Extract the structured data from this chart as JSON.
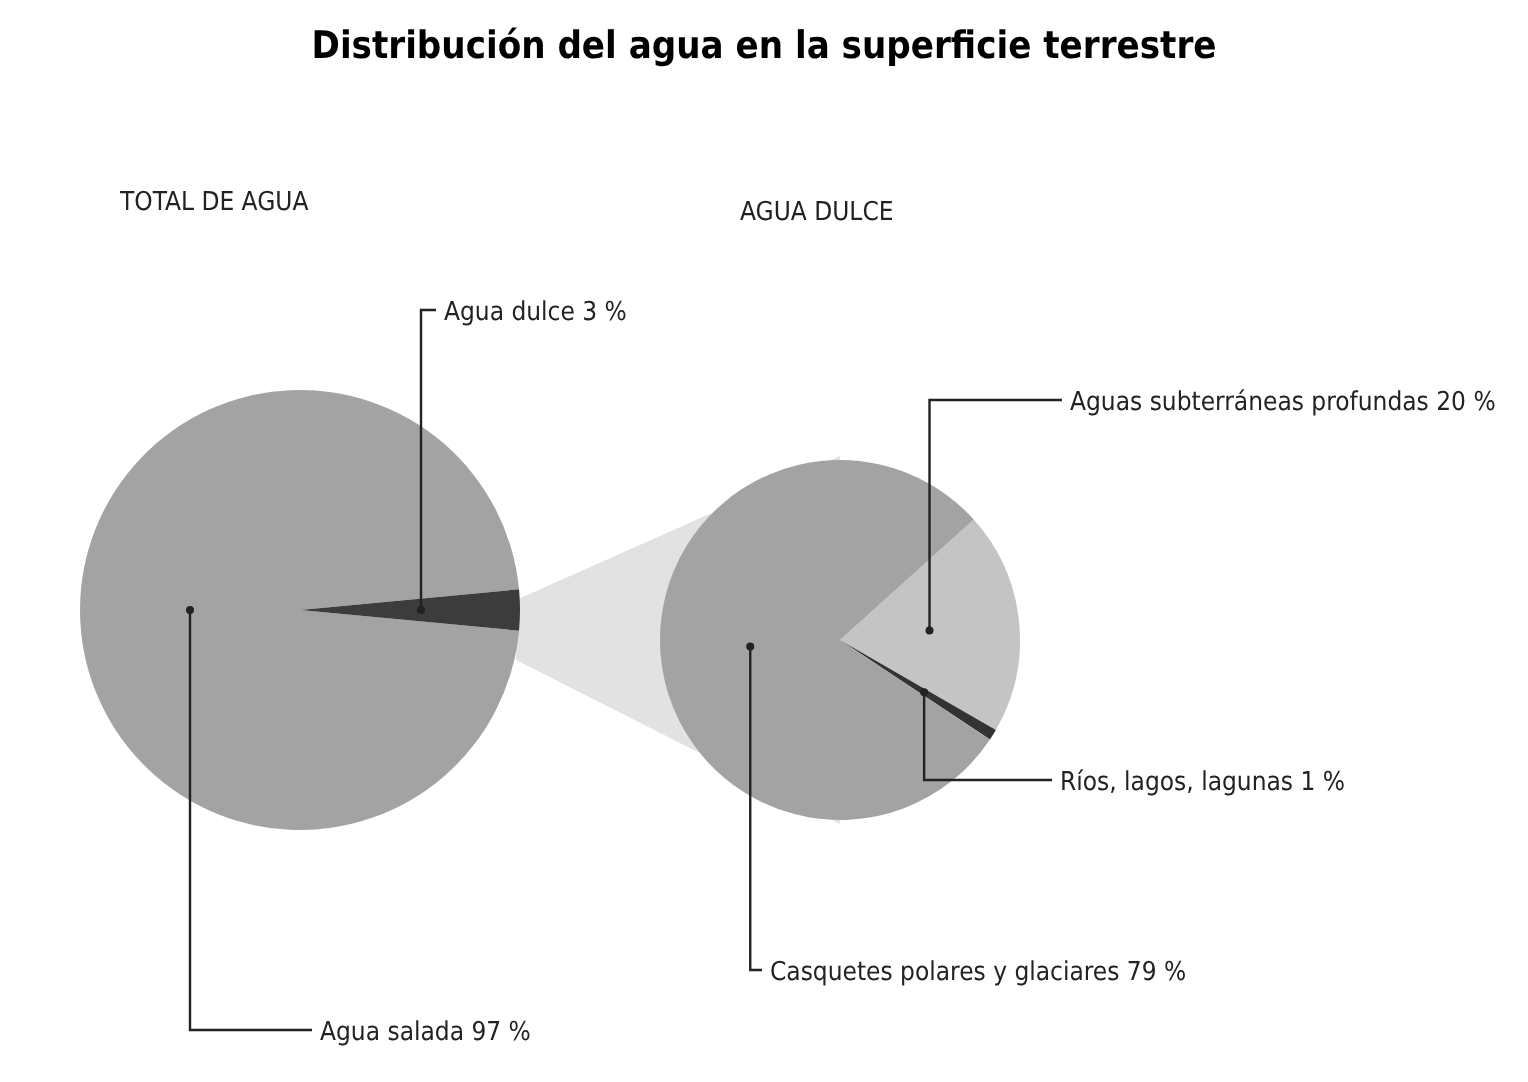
{
  "chart_data": [
    {
      "type": "pie",
      "title": "Distribución del agua en la superficie terrestre",
      "subtitle": "TOTAL DE AGUA",
      "categories": [
        "Agua salada",
        "Agua dulce"
      ],
      "values": [
        97,
        3
      ],
      "value_labels": [
        "97 %",
        "3 %"
      ],
      "colors": [
        "#a3a3a3",
        "#3c3c3c"
      ],
      "legend": false
    },
    {
      "type": "pie",
      "title": "AGUA DULCE",
      "categories": [
        "Aguas subterráneas profundas",
        "Ríos, lagos, lagunas",
        "Casquetes polares y glaciares"
      ],
      "values": [
        20,
        1,
        79
      ],
      "value_labels": [
        "20 %",
        "1 %",
        "79 %"
      ],
      "colors": [
        "#c4c4c4",
        "#333333",
        "#a3a3a3"
      ],
      "legend": false
    }
  ]
}
